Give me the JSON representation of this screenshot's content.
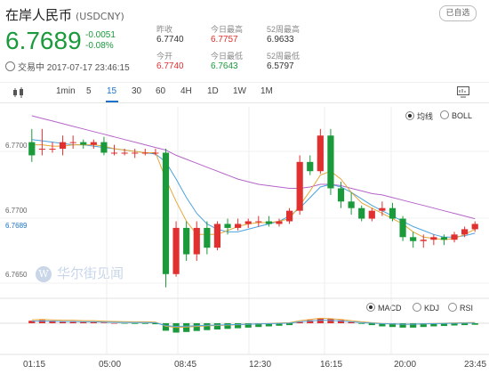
{
  "header": {
    "name": "在岸人民币",
    "code": "(USDCNY)",
    "price": "6.7689",
    "change": "-0.0051",
    "change_pct": "-0.08%",
    "status_time": "交易中 2017-07-17 23:46:15",
    "select_label": "已自选"
  },
  "stats": {
    "prev_close_label": "昨收",
    "prev_close": "6.7740",
    "high_label": "今日最高",
    "high": "6.7757",
    "w52_high_label": "52周最高",
    "w52_high": "6.9633",
    "open_label": "今开",
    "open": "6.7740",
    "low_label": "今日最低",
    "low": "6.7643",
    "w52_low_label": "52周最低",
    "w52_low": "6.5797"
  },
  "toolbar": {
    "items": [
      "1min",
      "5",
      "15",
      "30",
      "60",
      "4H",
      "1D",
      "1W",
      "1M"
    ],
    "active": "15"
  },
  "overlays": {
    "ma_label": "均线",
    "boll_label": "BOLL"
  },
  "indicators": {
    "macd": "MACD",
    "kdj": "KDJ",
    "rsi": "RSI"
  },
  "watermark": "华尔街见闻",
  "colors": {
    "up": "#e03030",
    "down": "#1a9a3a",
    "accent": "#1a73c9"
  },
  "chart_data": {
    "type": "candlestick",
    "y_ticks": [
      "6.7700",
      "6.7650"
    ],
    "price_label": "6.7689",
    "y_range": [
      6.7635,
      6.777
    ],
    "x_ticks": [
      "01:15",
      "05:00",
      "08:45",
      "12:30",
      "16:15",
      "20:00",
      "23:45"
    ],
    "candles": [
      [
        6.775,
        6.776,
        6.7735,
        6.774
      ],
      [
        6.7745,
        6.776,
        6.774,
        6.7745
      ],
      [
        6.7745,
        6.775,
        6.7742,
        6.7745
      ],
      [
        6.7745,
        6.7755,
        6.774,
        6.775
      ],
      [
        6.775,
        6.7755,
        6.7745,
        6.775
      ],
      [
        6.775,
        6.7752,
        6.7745,
        6.7748
      ],
      [
        6.7748,
        6.7752,
        6.7745,
        6.775
      ],
      [
        6.775,
        6.7754,
        6.774,
        6.7742
      ],
      [
        6.7742,
        6.7748,
        6.774,
        6.7742
      ],
      [
        6.7742,
        6.7745,
        6.774,
        6.7742
      ],
      [
        6.7742,
        6.7745,
        6.7738,
        6.7742
      ],
      [
        6.7742,
        6.7745,
        6.774,
        6.7742
      ],
      [
        6.7742,
        6.7745,
        6.774,
        6.7742
      ],
      [
        6.7742,
        6.7745,
        6.764,
        6.765
      ],
      [
        6.765,
        6.769,
        6.7648,
        6.7685
      ],
      [
        6.7685,
        6.769,
        6.766,
        6.7665
      ],
      [
        6.7665,
        6.769,
        6.766,
        6.7685
      ],
      [
        6.7685,
        6.769,
        6.7665,
        6.767
      ],
      [
        6.767,
        6.769,
        6.7668,
        6.7688
      ],
      [
        6.7688,
        6.7692,
        6.768,
        6.7685
      ],
      [
        6.7685,
        6.7692,
        6.7683,
        6.7688
      ],
      [
        6.7688,
        6.7692,
        6.7685,
        6.769
      ],
      [
        6.769,
        6.7694,
        6.7686,
        6.769
      ],
      [
        6.769,
        6.7694,
        6.7686,
        6.7688
      ],
      [
        6.7688,
        6.7692,
        6.7686,
        6.769
      ],
      [
        6.769,
        6.77,
        6.7688,
        6.7698
      ],
      [
        6.7698,
        6.774,
        6.7695,
        6.7735
      ],
      [
        6.7735,
        6.774,
        6.7725,
        6.7728
      ],
      [
        6.7728,
        6.776,
        6.7726,
        6.7755
      ],
      [
        6.7755,
        6.776,
        6.771,
        6.7715
      ],
      [
        6.7715,
        6.772,
        6.77,
        6.7705
      ],
      [
        6.7705,
        6.7712,
        6.7695,
        6.77
      ],
      [
        6.77,
        6.7702,
        6.769,
        6.7692
      ],
      [
        6.7692,
        6.77,
        6.769,
        6.7698
      ],
      [
        6.7698,
        6.7705,
        6.7694,
        6.77
      ],
      [
        6.77,
        6.7704,
        6.769,
        6.7692
      ],
      [
        6.7692,
        6.7694,
        6.7675,
        6.7678
      ],
      [
        6.7678,
        6.7682,
        6.767,
        6.7675
      ],
      [
        6.7675,
        6.768,
        6.767,
        6.7676
      ],
      [
        6.7676,
        6.768,
        6.7672,
        6.7678
      ],
      [
        6.7678,
        6.768,
        6.7672,
        6.7676
      ],
      [
        6.7676,
        6.7682,
        6.7674,
        6.768
      ],
      [
        6.768,
        6.7686,
        6.7678,
        6.7684
      ],
      [
        6.7684,
        6.769,
        6.7682,
        6.7688
      ]
    ],
    "ma_series": [
      {
        "color": "#b565c9",
        "values": [
          6.777,
          6.7768,
          6.7766,
          6.7764,
          6.7762,
          6.776,
          6.7758,
          6.7756,
          6.7754,
          6.7752,
          6.775,
          6.7748,
          6.7746,
          6.7744,
          6.774,
          6.7737,
          6.7734,
          6.7731,
          6.7728,
          6.7725,
          6.7722,
          6.772,
          6.7718,
          6.7717,
          6.7716,
          6.7715,
          6.7715,
          6.7716,
          6.7718,
          6.7718,
          6.7717,
          6.7715,
          6.7713,
          6.7711,
          6.771,
          6.7708,
          6.7706,
          6.7704,
          6.7702,
          6.77,
          6.7698,
          6.7696,
          6.7694,
          6.7692
        ]
      },
      {
        "color": "#4aa3df",
        "values": [
          6.7752,
          6.7751,
          6.775,
          6.7749,
          6.7748,
          6.7748,
          6.7747,
          6.7746,
          6.7745,
          6.7744,
          6.7743,
          6.7742,
          6.7741,
          6.7735,
          6.7722,
          6.7708,
          6.7696,
          6.7688,
          6.7684,
          6.7682,
          6.7682,
          6.7684,
          6.7686,
          6.7688,
          6.769,
          6.7694,
          6.77,
          6.7708,
          6.7716,
          6.7718,
          6.7716,
          6.7712,
          6.7707,
          6.7702,
          6.7698,
          6.7694,
          6.769,
          6.7686,
          6.7683,
          6.768,
          6.7678,
          6.7678,
          6.7679,
          6.7681
        ]
      },
      {
        "color": "#e6a83a",
        "values": [
          6.7748,
          6.7748,
          6.7747,
          6.7747,
          6.7748,
          6.7748,
          6.7748,
          6.7747,
          6.7745,
          6.7744,
          6.7743,
          6.7742,
          6.7742,
          6.7722,
          6.7705,
          6.769,
          6.768,
          6.768,
          6.768,
          6.7683,
          6.7686,
          6.7688,
          6.7689,
          6.7689,
          6.769,
          6.7692,
          6.7702,
          6.7713,
          6.7725,
          6.7728,
          6.7722,
          6.7712,
          6.7704,
          6.77,
          6.7696,
          6.7692,
          6.7688,
          6.7682,
          6.7678,
          6.7677,
          6.7676,
          6.7677,
          6.768,
          6.7684
        ]
      }
    ],
    "macd_hist": [
      0.2,
      0.25,
      0.2,
      0.15,
      0.15,
      0.1,
      0.1,
      0.05,
      0.0,
      -0.02,
      -0.05,
      -0.05,
      -0.08,
      -0.6,
      -0.75,
      -0.7,
      -0.62,
      -0.55,
      -0.5,
      -0.45,
      -0.4,
      -0.35,
      -0.3,
      -0.25,
      -0.2,
      -0.15,
      0.1,
      0.25,
      0.4,
      0.35,
      0.25,
      0.1,
      -0.05,
      -0.15,
      -0.25,
      -0.3,
      -0.35,
      -0.35,
      -0.3,
      -0.25,
      -0.22,
      -0.18,
      -0.15,
      -0.12
    ]
  }
}
